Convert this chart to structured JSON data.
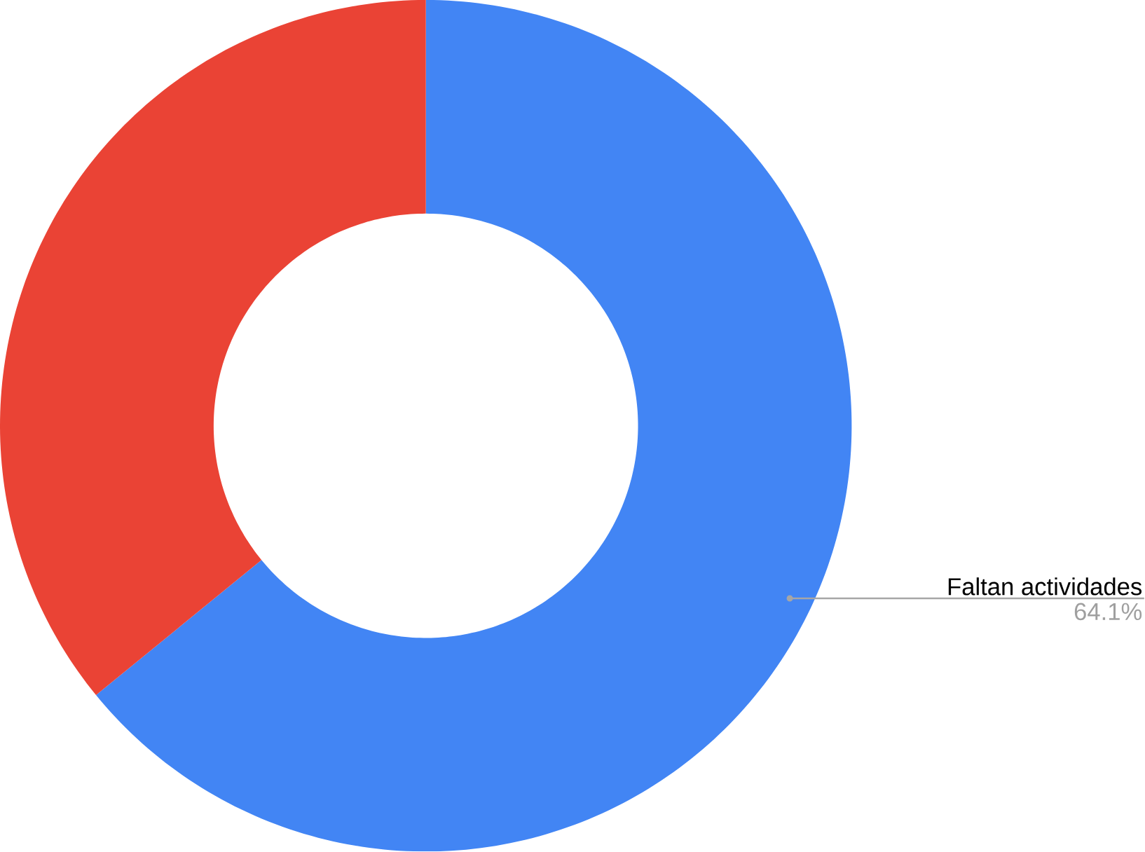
{
  "chart_data": {
    "type": "donut",
    "categories": [
      "Faltan actividades",
      null
    ],
    "values": [
      64.1,
      35.9
    ],
    "colors": [
      "#4285f4",
      "#ea4335"
    ],
    "value_labels": [
      "64.1%",
      null
    ]
  }
}
